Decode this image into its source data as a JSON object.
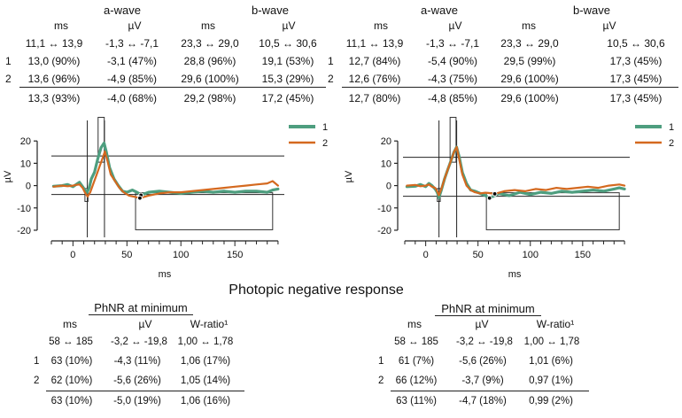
{
  "colors": {
    "series1": "#4e9e7f",
    "series2": "#d4691f",
    "axis": "#222222",
    "bg": "#ffffff"
  },
  "center_title": "Photopic negative response",
  "panels": [
    {
      "top_table": {
        "group_headers": [
          "a-wave",
          "b-wave"
        ],
        "col_headers": [
          "ms",
          "µV",
          "ms",
          "µV"
        ],
        "range_row": [
          "11,1 ↔ 13,9",
          "-1,3 ↔ -7,1",
          "23,3 ↔ 29,0",
          "10,5 ↔ 30,6"
        ],
        "rows": [
          {
            "label": "1",
            "cells": [
              "13,0 (90%)",
              "-3,1 (47%)",
              "28,8 (96%)",
              "19,1 (53%)"
            ]
          },
          {
            "label": "2",
            "cells": [
              "13,6 (96%)",
              "-4,9 (85%)",
              "29,6 (100%)",
              "15,3 (29%)"
            ]
          }
        ],
        "summary_row": [
          "13,3 (93%)",
          "-4,0 (68%)",
          "29,2 (98%)",
          "17,2 (45%)"
        ]
      },
      "bottom_table": {
        "title": "PhNR at minimum",
        "col_headers": [
          "ms",
          "µV",
          "W-ratio¹"
        ],
        "range_row": [
          "58 ↔ 185",
          "-3,2 ↔ -19,8",
          "1,00 ↔ 1,78"
        ],
        "rows": [
          {
            "label": "1",
            "cells": [
              "63 (10%)",
              "-4,3 (11%)",
              "1,06 (17%)"
            ]
          },
          {
            "label": "2",
            "cells": [
              "62 (10%)",
              "-5,6 (26%)",
              "1,05 (14%)"
            ]
          }
        ],
        "summary_row": [
          "63 (10%)",
          "-5,0 (19%)",
          "1,06 (16%)"
        ]
      }
    },
    {
      "top_table": {
        "group_headers": [
          "a-wave",
          "b-wave"
        ],
        "col_headers": [
          "ms",
          "µV",
          "ms",
          "µV"
        ],
        "range_row": [
          "11,1 ↔ 13,9",
          "-1,3 ↔ -7,1",
          "23,3 ↔ 29,0",
          "10,5 ↔ 30,6"
        ],
        "rows": [
          {
            "label": "1",
            "cells": [
              "12,7 (84%)",
              "-5,4 (90%)",
              "29,5 (99%)",
              "17,3 (45%)"
            ]
          },
          {
            "label": "2",
            "cells": [
              "12,6 (76%)",
              "-4,3 (75%)",
              "29,6 (100%)",
              "17,3 (45%)"
            ]
          }
        ],
        "summary_row": [
          "12,7 (80%)",
          "-4,8 (85%)",
          "29,6 (100%)",
          "17,3 (45%)"
        ]
      },
      "bottom_table": {
        "title": "PhNR at minimum",
        "col_headers": [
          "ms",
          "µV",
          "W-ratio¹"
        ],
        "range_row": [
          "58 ↔ 185",
          "-3,2 ↔ -19,8",
          "1,00 ↔ 1,78"
        ],
        "rows": [
          {
            "label": "1",
            "cells": [
              "61 (7%)",
              "-5,6 (26%)",
              "1,01 (6%)"
            ]
          },
          {
            "label": "2",
            "cells": [
              "66 (12%)",
              "-3,7 (9%)",
              "0,97 (1%)"
            ]
          }
        ],
        "summary_row": [
          "63 (11%)",
          "-4,7 (18%)",
          "0,99 (2%)"
        ]
      }
    }
  ],
  "chart_data": [
    {
      "type": "line",
      "xlabel": "ms",
      "ylabel": "µV",
      "xlim": [
        -20,
        195
      ],
      "ylim": [
        -22,
        30
      ],
      "xticks": [
        0,
        50,
        100,
        150
      ],
      "yticks": [
        -20,
        -10,
        0,
        10,
        20
      ],
      "legend": {
        "placement": "top-right",
        "entries": [
          "1",
          "2"
        ]
      },
      "reference_lines": {
        "horizontal": [
          13.3,
          -4.0
        ],
        "vertical": [
          13.3,
          29.2
        ]
      },
      "reference_boxes": [
        {
          "x": [
            11.1,
            13.9
          ],
          "y": [
            -7.1,
            -1.3
          ]
        },
        {
          "x": [
            23.3,
            29.0
          ],
          "y": [
            10.5,
            30.6
          ]
        },
        {
          "x": [
            58,
            185
          ],
          "y": [
            -19.8,
            -3.2
          ]
        }
      ],
      "minimum_markers": [
        {
          "x": 63,
          "y": -4.3
        },
        {
          "x": 62,
          "y": -5.6
        }
      ],
      "series": [
        {
          "name": "1",
          "x": [
            -18,
            -10,
            -5,
            0,
            3,
            6,
            9,
            11,
            13,
            15,
            17,
            20,
            23,
            26,
            28.8,
            31,
            34,
            38,
            42,
            46,
            50,
            55,
            60,
            63,
            70,
            80,
            90,
            100,
            110,
            120,
            130,
            140,
            150,
            160,
            170,
            180,
            185,
            190
          ],
          "y": [
            -0.3,
            0,
            0.5,
            -0.5,
            0.5,
            1.5,
            -0.5,
            -2,
            -3.1,
            -1,
            3,
            6,
            12,
            17,
            19.1,
            15,
            8,
            3,
            0,
            -2.5,
            -3,
            -2,
            -3.2,
            -4.3,
            -3,
            -2.5,
            -3,
            -3.5,
            -3,
            -2.5,
            -3,
            -2.5,
            -3,
            -2.5,
            -2.5,
            -3,
            -2,
            -1.5
          ]
        },
        {
          "name": "2",
          "x": [
            -18,
            -10,
            -5,
            0,
            3,
            6,
            9,
            11,
            13.6,
            16,
            19,
            22,
            25,
            28,
            29.6,
            32,
            35,
            39,
            43,
            47,
            52,
            57,
            62,
            70,
            80,
            90,
            100,
            110,
            120,
            130,
            140,
            150,
            160,
            170,
            180,
            185,
            190
          ],
          "y": [
            -0.5,
            0,
            -0.3,
            0,
            0.3,
            0.5,
            -1,
            -3,
            -4.9,
            -3,
            1,
            5,
            9,
            13,
            15.3,
            11,
            5,
            2,
            -1,
            -3,
            -4.5,
            -5,
            -5.6,
            -4.5,
            -3.5,
            -3,
            -3,
            -2.5,
            -2,
            -1.5,
            -1,
            -0.5,
            0,
            0.5,
            1,
            2,
            0
          ]
        }
      ]
    },
    {
      "type": "line",
      "xlabel": "ms",
      "ylabel": "µV",
      "xlim": [
        -20,
        195
      ],
      "ylim": [
        -22,
        30
      ],
      "xticks": [
        0,
        50,
        100,
        150
      ],
      "yticks": [
        -20,
        -10,
        0,
        10,
        20
      ],
      "legend": {
        "placement": "top-right",
        "entries": [
          "1",
          "2"
        ]
      },
      "reference_lines": {
        "horizontal": [
          12.7,
          -4.8
        ],
        "vertical": [
          12.7,
          29.6
        ]
      },
      "reference_boxes": [
        {
          "x": [
            11.1,
            13.9
          ],
          "y": [
            -7.1,
            -1.3
          ]
        },
        {
          "x": [
            23.3,
            29.0
          ],
          "y": [
            10.5,
            30.6
          ]
        },
        {
          "x": [
            58,
            185
          ],
          "y": [
            -19.8,
            -3.2
          ]
        }
      ],
      "minimum_markers": [
        {
          "x": 61,
          "y": -5.6
        },
        {
          "x": 66,
          "y": -3.7
        }
      ],
      "series": [
        {
          "name": "1",
          "x": [
            -18,
            -10,
            -5,
            0,
            3,
            6,
            9,
            11,
            12.7,
            15,
            18,
            21,
            24,
            27,
            29.5,
            32,
            35,
            39,
            43,
            47,
            52,
            57,
            61,
            70,
            80,
            90,
            100,
            110,
            120,
            130,
            140,
            150,
            160,
            170,
            180,
            185,
            190
          ],
          "y": [
            -0.5,
            -0.3,
            0.5,
            -0.5,
            1,
            0,
            -1.5,
            -3,
            -5.4,
            -2,
            3,
            7,
            11,
            15,
            17.3,
            13,
            6,
            1,
            -2,
            -2.5,
            -3.5,
            -4.5,
            -5.6,
            -3.5,
            -4.5,
            -3,
            -4,
            -3,
            -3.5,
            -2.5,
            -3,
            -2.5,
            -2,
            -2.5,
            -1.5,
            -1,
            -1.5
          ]
        },
        {
          "name": "2",
          "x": [
            -18,
            -10,
            -5,
            0,
            3,
            6,
            9,
            11,
            12.6,
            15,
            18,
            21,
            24,
            27,
            29.6,
            32,
            35,
            39,
            43,
            47,
            52,
            57,
            60,
            66,
            75,
            85,
            95,
            105,
            115,
            125,
            135,
            145,
            155,
            165,
            175,
            185,
            190
          ],
          "y": [
            0,
            0.3,
            -0.3,
            0,
            0.5,
            -0.5,
            -1,
            -2.5,
            -4.3,
            -1.5,
            3,
            7,
            11,
            15,
            17.3,
            12,
            5,
            0,
            -2,
            -3,
            -3.5,
            -3.2,
            -3.3,
            -3.7,
            -2.5,
            -2,
            -2.5,
            -1.5,
            -2,
            -1,
            -1.5,
            -1,
            -0.5,
            -1,
            0,
            0.5,
            0
          ]
        }
      ]
    }
  ]
}
